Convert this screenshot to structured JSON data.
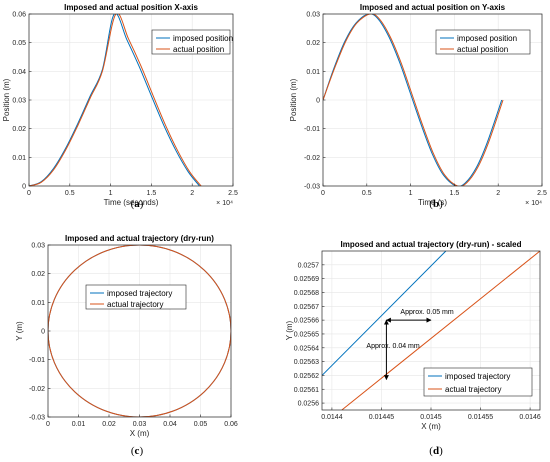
{
  "colors": {
    "imposed": "#0072BD",
    "actual": "#D95319",
    "grid": "#e6e6e6",
    "axis": "#262626"
  },
  "panels": [
    {
      "caption_letter": "a",
      "chart_data": {
        "type": "line",
        "title": "Imposed and actual position X-axis",
        "xlabel": "Time (seconds)",
        "ylabel": "Position (m)",
        "xlim": [
          0,
          25000
        ],
        "ylim": [
          0,
          0.06
        ],
        "xticks": [
          0,
          5000,
          10000,
          15000,
          20000,
          25000
        ],
        "xtick_labels": [
          "0",
          "0.5",
          "1",
          "1.5",
          "2",
          "2.5"
        ],
        "x_exponent_label": "× 10⁴",
        "yticks": [
          0,
          0.01,
          0.02,
          0.03,
          0.04,
          0.05,
          0.06
        ],
        "ytick_labels": [
          "0",
          "0.01",
          "0.02",
          "0.03",
          "0.04",
          "0.05",
          "0.06"
        ],
        "grid": true,
        "legend": "top-right",
        "series": [
          {
            "name": "imposed position",
            "x": [
              0,
              1500,
              3000,
              4500,
              6000,
              7500,
              9000,
              10450,
              12000,
              13500,
              15000,
              16500,
              18000,
              19500,
              20900
            ],
            "y": [
              0,
              0.0015,
              0.0061,
              0.0132,
              0.0219,
              0.0314,
              0.0407,
              0.06,
              0.051,
              0.0417,
              0.0314,
              0.0213,
              0.0124,
              0.005,
              0
            ]
          },
          {
            "name": "actual position",
            "x": [
              0,
              1500,
              3000,
              4500,
              6000,
              7500,
              9000,
              10650,
              12200,
              13700,
              15200,
              16700,
              18200,
              19700,
              21100
            ],
            "y": [
              0,
              0.0013,
              0.0056,
              0.0126,
              0.0212,
              0.0307,
              0.0401,
              0.06,
              0.0513,
              0.042,
              0.0316,
              0.0214,
              0.0124,
              0.0049,
              0
            ]
          }
        ]
      }
    },
    {
      "caption_letter": "b",
      "chart_data": {
        "type": "line",
        "title": "Imposed and actual position on Y-axis",
        "xlabel": "Time (s)",
        "ylabel": "Position (m)",
        "xlim": [
          0,
          25000
        ],
        "ylim": [
          -0.03,
          0.03
        ],
        "xticks": [
          0,
          5000,
          10000,
          15000,
          20000,
          25000
        ],
        "xtick_labels": [
          "0",
          "0.5",
          "1",
          "1.5",
          "2",
          "2.5"
        ],
        "x_exponent_label": "× 10⁴",
        "yticks": [
          -0.03,
          -0.02,
          -0.01,
          0,
          0.01,
          0.02,
          0.03
        ],
        "ytick_labels": [
          "-0.03",
          "-0.02",
          "-0.01",
          "0",
          "0.01",
          "0.02",
          "0.03"
        ],
        "grid": true,
        "legend": "top-right",
        "series": [
          {
            "name": "imposed position",
            "x": [
              0,
              1250,
              2500,
              3750,
              5200,
              6250,
              7500,
              8750,
              10000,
              11250,
              12500,
              13750,
              15200,
              16250,
              17500,
              18750,
              20400
            ],
            "y": [
              0,
              0.0111,
              0.0205,
              0.0268,
              0.03,
              0.0284,
              0.0222,
              0.0131,
              0.0021,
              -0.009,
              -0.019,
              -0.0262,
              -0.03,
              -0.0289,
              -0.0236,
              -0.0148,
              0
            ]
          },
          {
            "name": "actual position",
            "x": [
              0,
              1350,
              2600,
              3850,
              5350,
              6400,
              7650,
              8900,
              10150,
              11400,
              12650,
              13900,
              15350,
              16400,
              17650,
              18900,
              20550
            ],
            "y": [
              0,
              0.0113,
              0.0205,
              0.0268,
              0.03,
              0.0284,
              0.0222,
              0.0131,
              0.0021,
              -0.009,
              -0.019,
              -0.0262,
              -0.03,
              -0.0289,
              -0.0236,
              -0.0148,
              0
            ]
          }
        ]
      }
    },
    {
      "caption_letter": "c",
      "chart_data": {
        "type": "line",
        "title": "Imposed and actual trajectory (dry-run)",
        "xlabel": "X (m)",
        "ylabel": "Y (m)",
        "xlim": [
          0,
          0.06
        ],
        "ylim": [
          -0.03,
          0.03
        ],
        "xticks": [
          0,
          0.01,
          0.02,
          0.03,
          0.04,
          0.05,
          0.06
        ],
        "xtick_labels": [
          "0",
          "0.01",
          "0.02",
          "0.03",
          "0.04",
          "0.05",
          "0.06"
        ],
        "yticks": [
          -0.03,
          -0.02,
          -0.01,
          0,
          0.01,
          0.02,
          0.03
        ],
        "ytick_labels": [
          "-0.03",
          "-0.02",
          "-0.01",
          "0",
          "0.01",
          "0.02",
          "0.03"
        ],
        "grid": true,
        "legend": "top-left",
        "series": [
          {
            "name": "imposed trajectory",
            "x": [
              0.06,
              0.056,
              0.045,
              0.03,
              0.015,
              0.004,
              0,
              0.004,
              0.015,
              0.03,
              0.045,
              0.056,
              0.06
            ],
            "y": [
              0,
              0.015,
              0.026,
              0.03,
              0.026,
              0.015,
              0,
              -0.015,
              -0.026,
              -0.03,
              -0.026,
              -0.015,
              0
            ]
          },
          {
            "name": "actual trajectory",
            "x": [
              0.06,
              0.056,
              0.045,
              0.03,
              0.015,
              0.004,
              0,
              0.004,
              0.015,
              0.03,
              0.045,
              0.056,
              0.06
            ],
            "y": [
              0,
              0.015,
              0.026,
              0.03,
              0.026,
              0.015,
              0,
              -0.015,
              -0.026,
              -0.03,
              -0.026,
              -0.015,
              0
            ]
          }
        ]
      }
    },
    {
      "caption_letter": "d",
      "chart_data": {
        "type": "line",
        "title": "Imposed and actual trajectory (dry-run) - scaled",
        "xlabel": "X (m)",
        "ylabel": "Y (m)",
        "xlim": [
          0.01439,
          0.01461
        ],
        "ylim": [
          0.025595,
          0.02571
        ],
        "xticks": [
          0.0144,
          0.01445,
          0.0145,
          0.01455,
          0.0146
        ],
        "xtick_labels": [
          "0.0144",
          "0.01445",
          "0.0145",
          "0.01455",
          "0.0146"
        ],
        "yticks": [
          0.0256,
          0.02561,
          0.02562,
          0.02563,
          0.02564,
          0.02565,
          0.02566,
          0.02567,
          0.02568,
          0.02569,
          0.0257
        ],
        "ytick_labels": [
          "0.0256",
          "0.02561",
          "0.02562",
          "0.02563",
          "0.02564",
          "0.02565",
          "0.02566",
          "0.02567",
          "0.02568",
          "0.02569",
          "0.0257"
        ],
        "grid": true,
        "legend": "bottom-right",
        "series": [
          {
            "name": "imposed trajectory",
            "x": [
              0.01439,
              0.014515
            ],
            "y": [
              0.02562,
              0.02571
            ]
          },
          {
            "name": "actual trajectory",
            "x": [
              0.01441,
              0.01461
            ],
            "y": [
              0.025595,
              0.02571
            ]
          }
        ],
        "annotations": [
          {
            "text": "Approx. 0.05 mm",
            "arrow": "horizontal",
            "x1": 0.014455,
            "x2": 0.0145,
            "y": 0.02566
          },
          {
            "text": "Approx. 0.04 mm",
            "arrow": "vertical",
            "x": 0.014455,
            "y1": 0.025617,
            "y2": 0.02566
          }
        ]
      }
    }
  ]
}
